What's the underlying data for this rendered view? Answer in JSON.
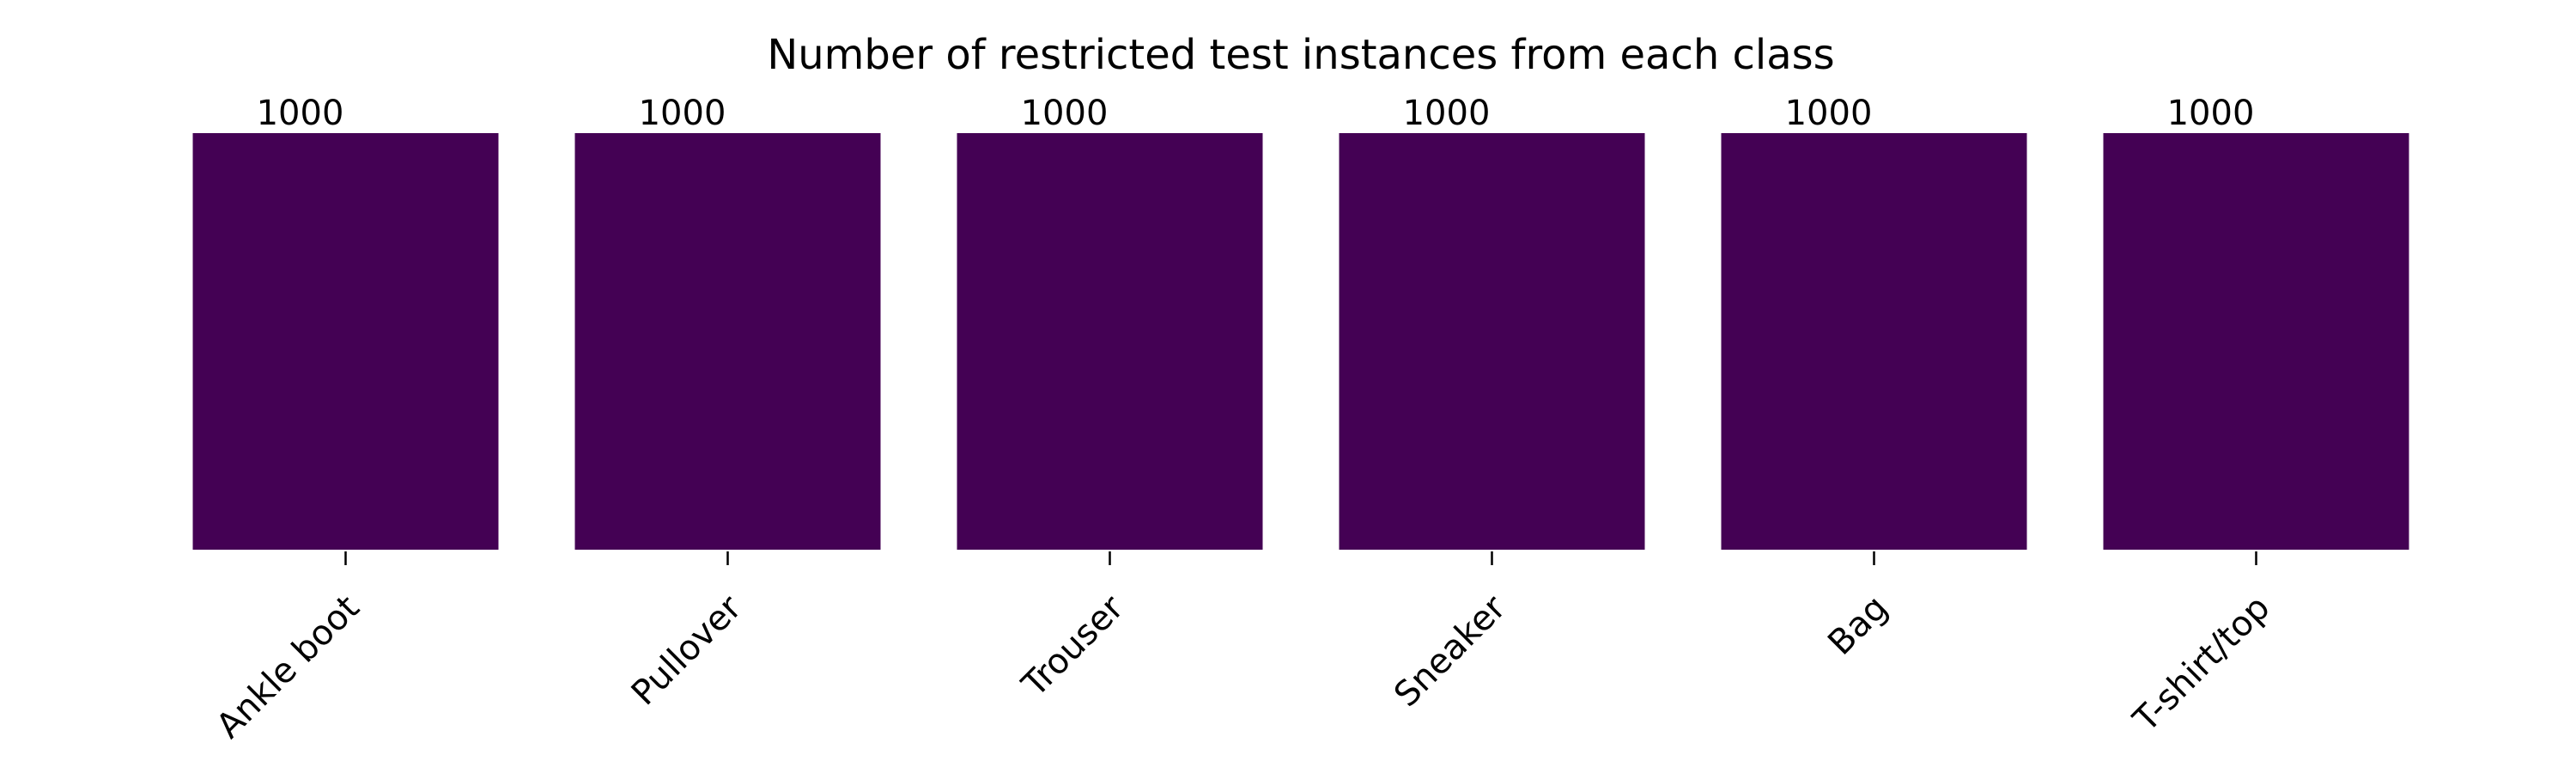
{
  "chart_data": {
    "type": "bar",
    "title": "Number of restricted test instances from each class",
    "xlabel": "",
    "ylabel": "",
    "categories": [
      "Ankle boot",
      "Pullover",
      "Trouser",
      "Sneaker",
      "Bag",
      "T-shirt/top"
    ],
    "values": [
      1000,
      1000,
      1000,
      1000,
      1000,
      1000
    ],
    "ylim": [
      0,
      1000
    ],
    "bar_color": "#440154",
    "grid": false,
    "show_y_axis": false,
    "data_labels": [
      "1000",
      "1000",
      "1000",
      "1000",
      "1000",
      "1000"
    ],
    "x_tick_rotation_deg": 45
  }
}
